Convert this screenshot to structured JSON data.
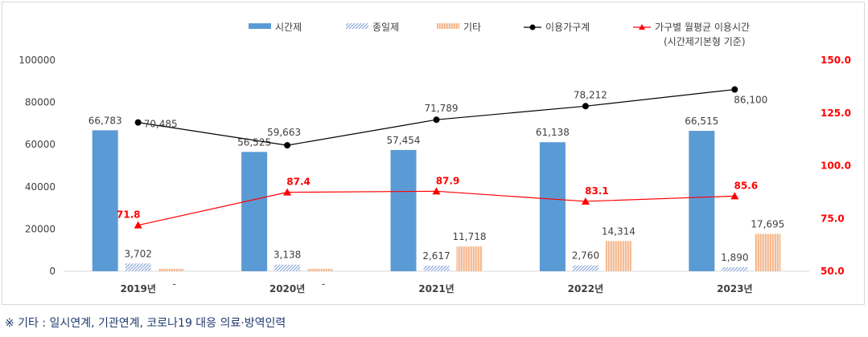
{
  "chart_data": {
    "type": "bar",
    "categories": [
      "2019년",
      "2020년",
      "2021년",
      "2022년",
      "2023년"
    ],
    "series": [
      {
        "name": "시간제",
        "kind": "bar",
        "color": "#5b9bd5",
        "values": [
          66783,
          56525,
          57454,
          61138,
          66515
        ],
        "labels": [
          "66,783",
          "56,525",
          "57,454",
          "61,138",
          "66,515"
        ]
      },
      {
        "name": "종일제",
        "kind": "bar",
        "color": "#8faadc",
        "values": [
          3702,
          3138,
          2617,
          2760,
          1890
        ],
        "labels": [
          "3,702",
          "3,138",
          "2,617",
          "2,760",
          "1,890"
        ]
      },
      {
        "name": "기타",
        "kind": "bar",
        "color": "#f4b183",
        "values": [
          0,
          0,
          11718,
          14314,
          17695
        ],
        "labels": [
          "-",
          "-",
          "11,718",
          "14,314",
          "17,695"
        ]
      },
      {
        "name": "이용가구계",
        "kind": "line",
        "axis": "left",
        "color": "#000000",
        "values": [
          70485,
          59663,
          71789,
          78212,
          86100
        ],
        "labels": [
          "70,485",
          "59,663",
          "71,789",
          "78,212",
          "86,100"
        ]
      },
      {
        "name": "가구별 월평균 이용시간",
        "name2": "(시간제기본형 기준)",
        "kind": "line",
        "axis": "right",
        "color": "#ff0000",
        "values": [
          71.8,
          87.4,
          87.9,
          83.1,
          85.6
        ],
        "labels": [
          "71.8",
          "87.4",
          "87.9",
          "83.1",
          "85.6"
        ]
      }
    ],
    "yLeft": {
      "min": 0,
      "max": 100000,
      "ticks": [
        "0",
        "20000",
        "40000",
        "60000",
        "80000",
        "100000"
      ]
    },
    "yRight": {
      "min": 50,
      "max": 150,
      "ticks": [
        "50.0",
        "75.0",
        "100.0",
        "125.0",
        "150.0"
      ]
    },
    "legend_position": "top"
  },
  "footnote": "※ 기타 : 일시연계, 기관연계, 코로나19 대응 의료·방역인력"
}
